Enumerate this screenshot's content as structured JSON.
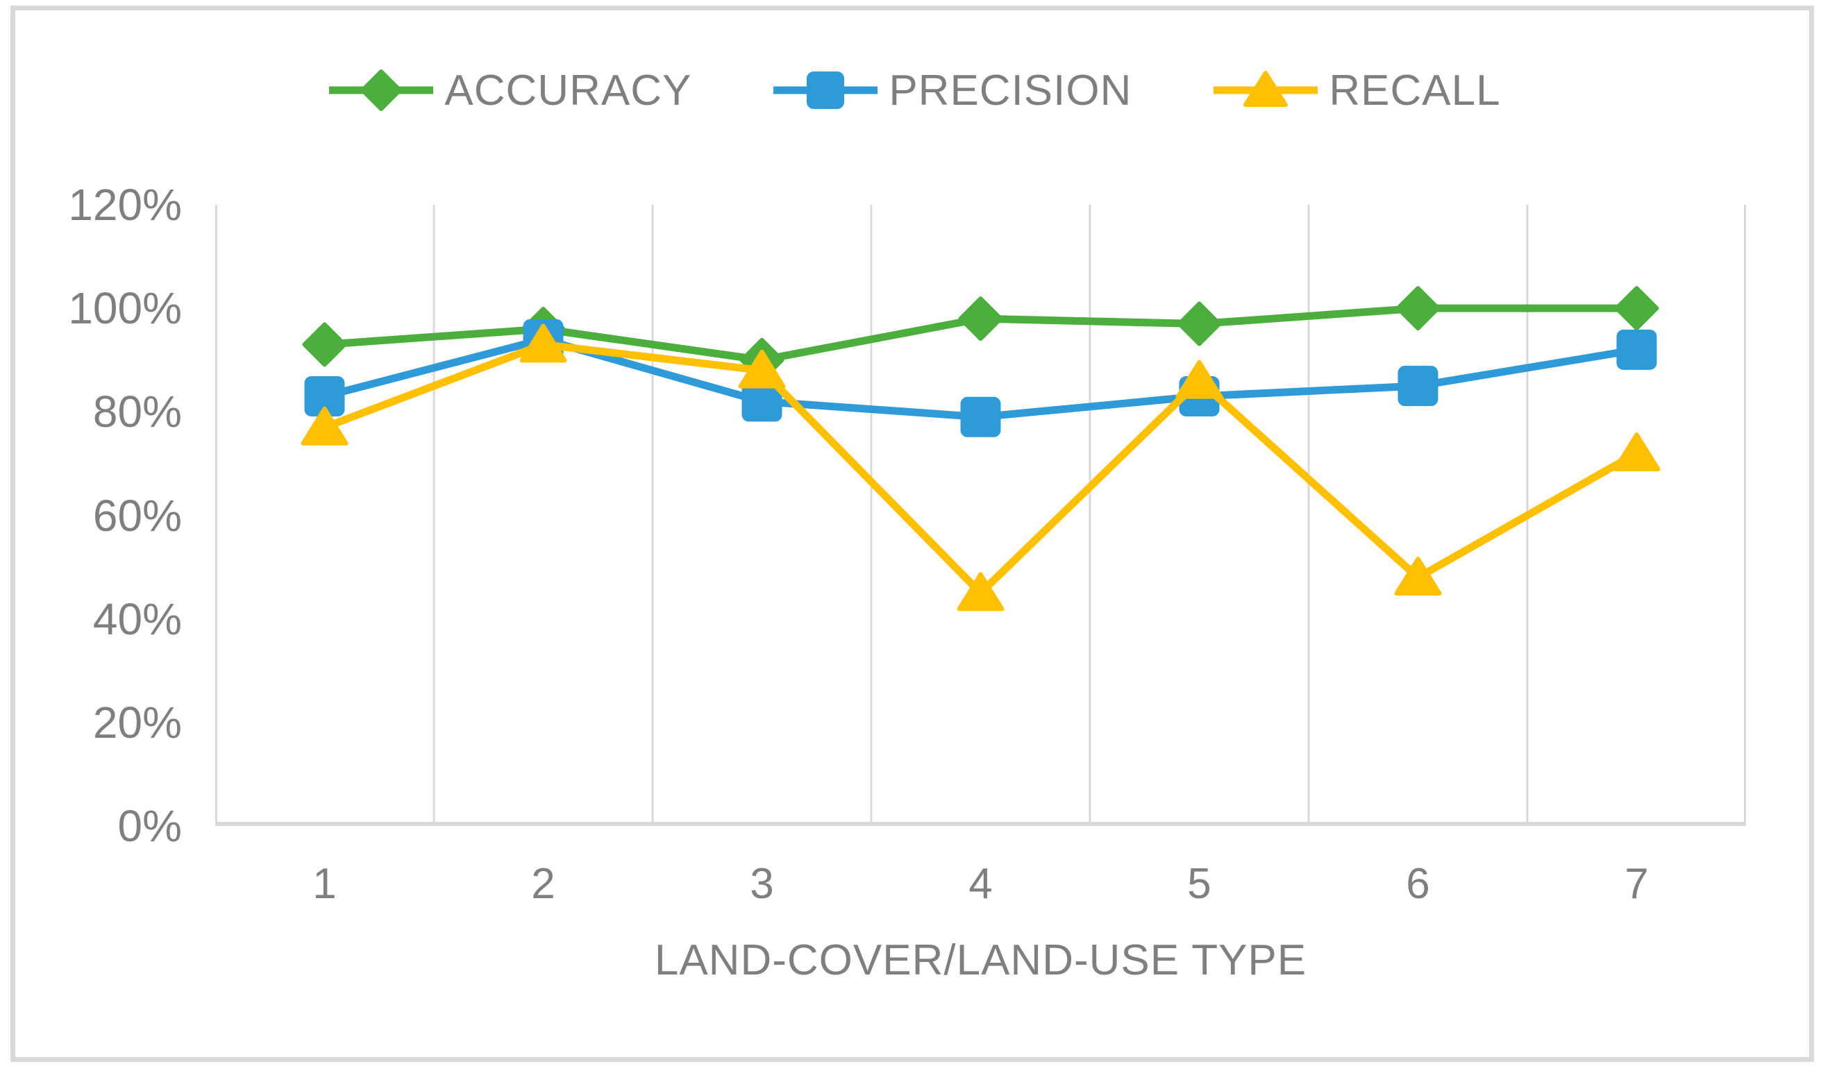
{
  "figure": {
    "background_color": "#FFFFFF",
    "border_color": "#D9D9D9"
  },
  "chart_data": {
    "type": "line",
    "categories": [
      "1",
      "2",
      "3",
      "4",
      "5",
      "6",
      "7"
    ],
    "series": [
      {
        "name": "ACCURACY",
        "marker": "diamond",
        "color": "#4CAE3C",
        "values": [
          93,
          96,
          90,
          98,
          97,
          100,
          100
        ]
      },
      {
        "name": "PRECISION",
        "marker": "square",
        "color": "#2E9BD8",
        "values": [
          83,
          94,
          82,
          79,
          83,
          85,
          92
        ]
      },
      {
        "name": "RECALL",
        "marker": "triangle",
        "color": "#FFC000",
        "values": [
          77,
          93,
          88,
          45,
          86,
          48,
          72
        ]
      }
    ],
    "title": "",
    "xlabel": "LAND-COVER/LAND-USE TYPE",
    "ylabel": "",
    "ylim": [
      0,
      120
    ],
    "ytick_step": 20,
    "ytick_labels": [
      "0%",
      "20%",
      "40%",
      "60%",
      "80%",
      "100%",
      "120%"
    ],
    "grid": "vertical-only",
    "grid_color": "#D9D9D9",
    "axis_color": "#D9D9D9",
    "text_color": "#7F7F7F",
    "legend_position": "top"
  }
}
